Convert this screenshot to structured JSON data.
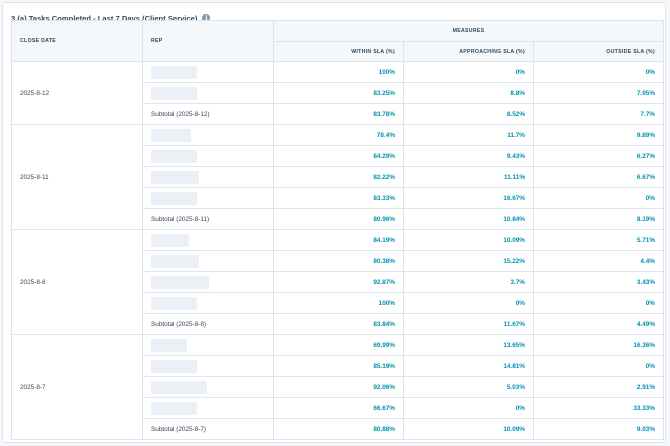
{
  "report": {
    "title": "3 (a) Tasks Completed - Last 7 Days (Client Service)",
    "info_icon": "info-icon",
    "accent_color": "#0091ae",
    "headers": {
      "close_date": "CLOSE DATE",
      "rep": "REP",
      "measures": "MEASURES",
      "within": "WITHIN SLA (%)",
      "approaching": "APPROACHING SLA (%)",
      "outside": "OUTSIDE SLA (%)"
    },
    "groups": [
      {
        "date": "2025-8-12",
        "rows": [
          {
            "within": "100%",
            "approaching": "0%",
            "outside": "0%"
          },
          {
            "within": "83.25%",
            "approaching": "8.8%",
            "outside": "7.95%"
          }
        ],
        "subtotal": {
          "label": "Subtotal (2025-8-12)",
          "within": "83.78%",
          "approaching": "8.52%",
          "outside": "7.7%"
        }
      },
      {
        "date": "2025-8-11",
        "rows": [
          {
            "within": "78.4%",
            "approaching": "11.7%",
            "outside": "9.89%"
          },
          {
            "within": "84.29%",
            "approaching": "9.43%",
            "outside": "6.27%"
          },
          {
            "within": "82.22%",
            "approaching": "11.11%",
            "outside": "6.67%"
          },
          {
            "within": "83.33%",
            "approaching": "16.67%",
            "outside": "0%"
          }
        ],
        "subtotal": {
          "label": "Subtotal (2025-8-11)",
          "within": "80.96%",
          "approaching": "10.84%",
          "outside": "8.19%"
        }
      },
      {
        "date": "2025-8-8",
        "rows": [
          {
            "within": "84.19%",
            "approaching": "10.09%",
            "outside": "5.71%"
          },
          {
            "within": "80.38%",
            "approaching": "15.22%",
            "outside": "4.4%"
          },
          {
            "within": "92.87%",
            "approaching": "3.7%",
            "outside": "3.43%"
          },
          {
            "within": "100%",
            "approaching": "0%",
            "outside": "0%"
          }
        ],
        "subtotal": {
          "label": "Subtotal (2025-8-8)",
          "within": "83.84%",
          "approaching": "11.67%",
          "outside": "4.49%"
        }
      },
      {
        "date": "2025-8-7",
        "rows": [
          {
            "within": "69.99%",
            "approaching": "13.65%",
            "outside": "16.36%"
          },
          {
            "within": "85.19%",
            "approaching": "14.81%",
            "outside": "0%"
          },
          {
            "within": "92.06%",
            "approaching": "5.03%",
            "outside": "2.91%"
          },
          {
            "within": "66.67%",
            "approaching": "0%",
            "outside": "33.33%"
          }
        ],
        "subtotal": {
          "label": "Subtotal (2025-8-7)",
          "within": "80.88%",
          "approaching": "10.09%",
          "outside": "9.03%"
        }
      }
    ]
  }
}
